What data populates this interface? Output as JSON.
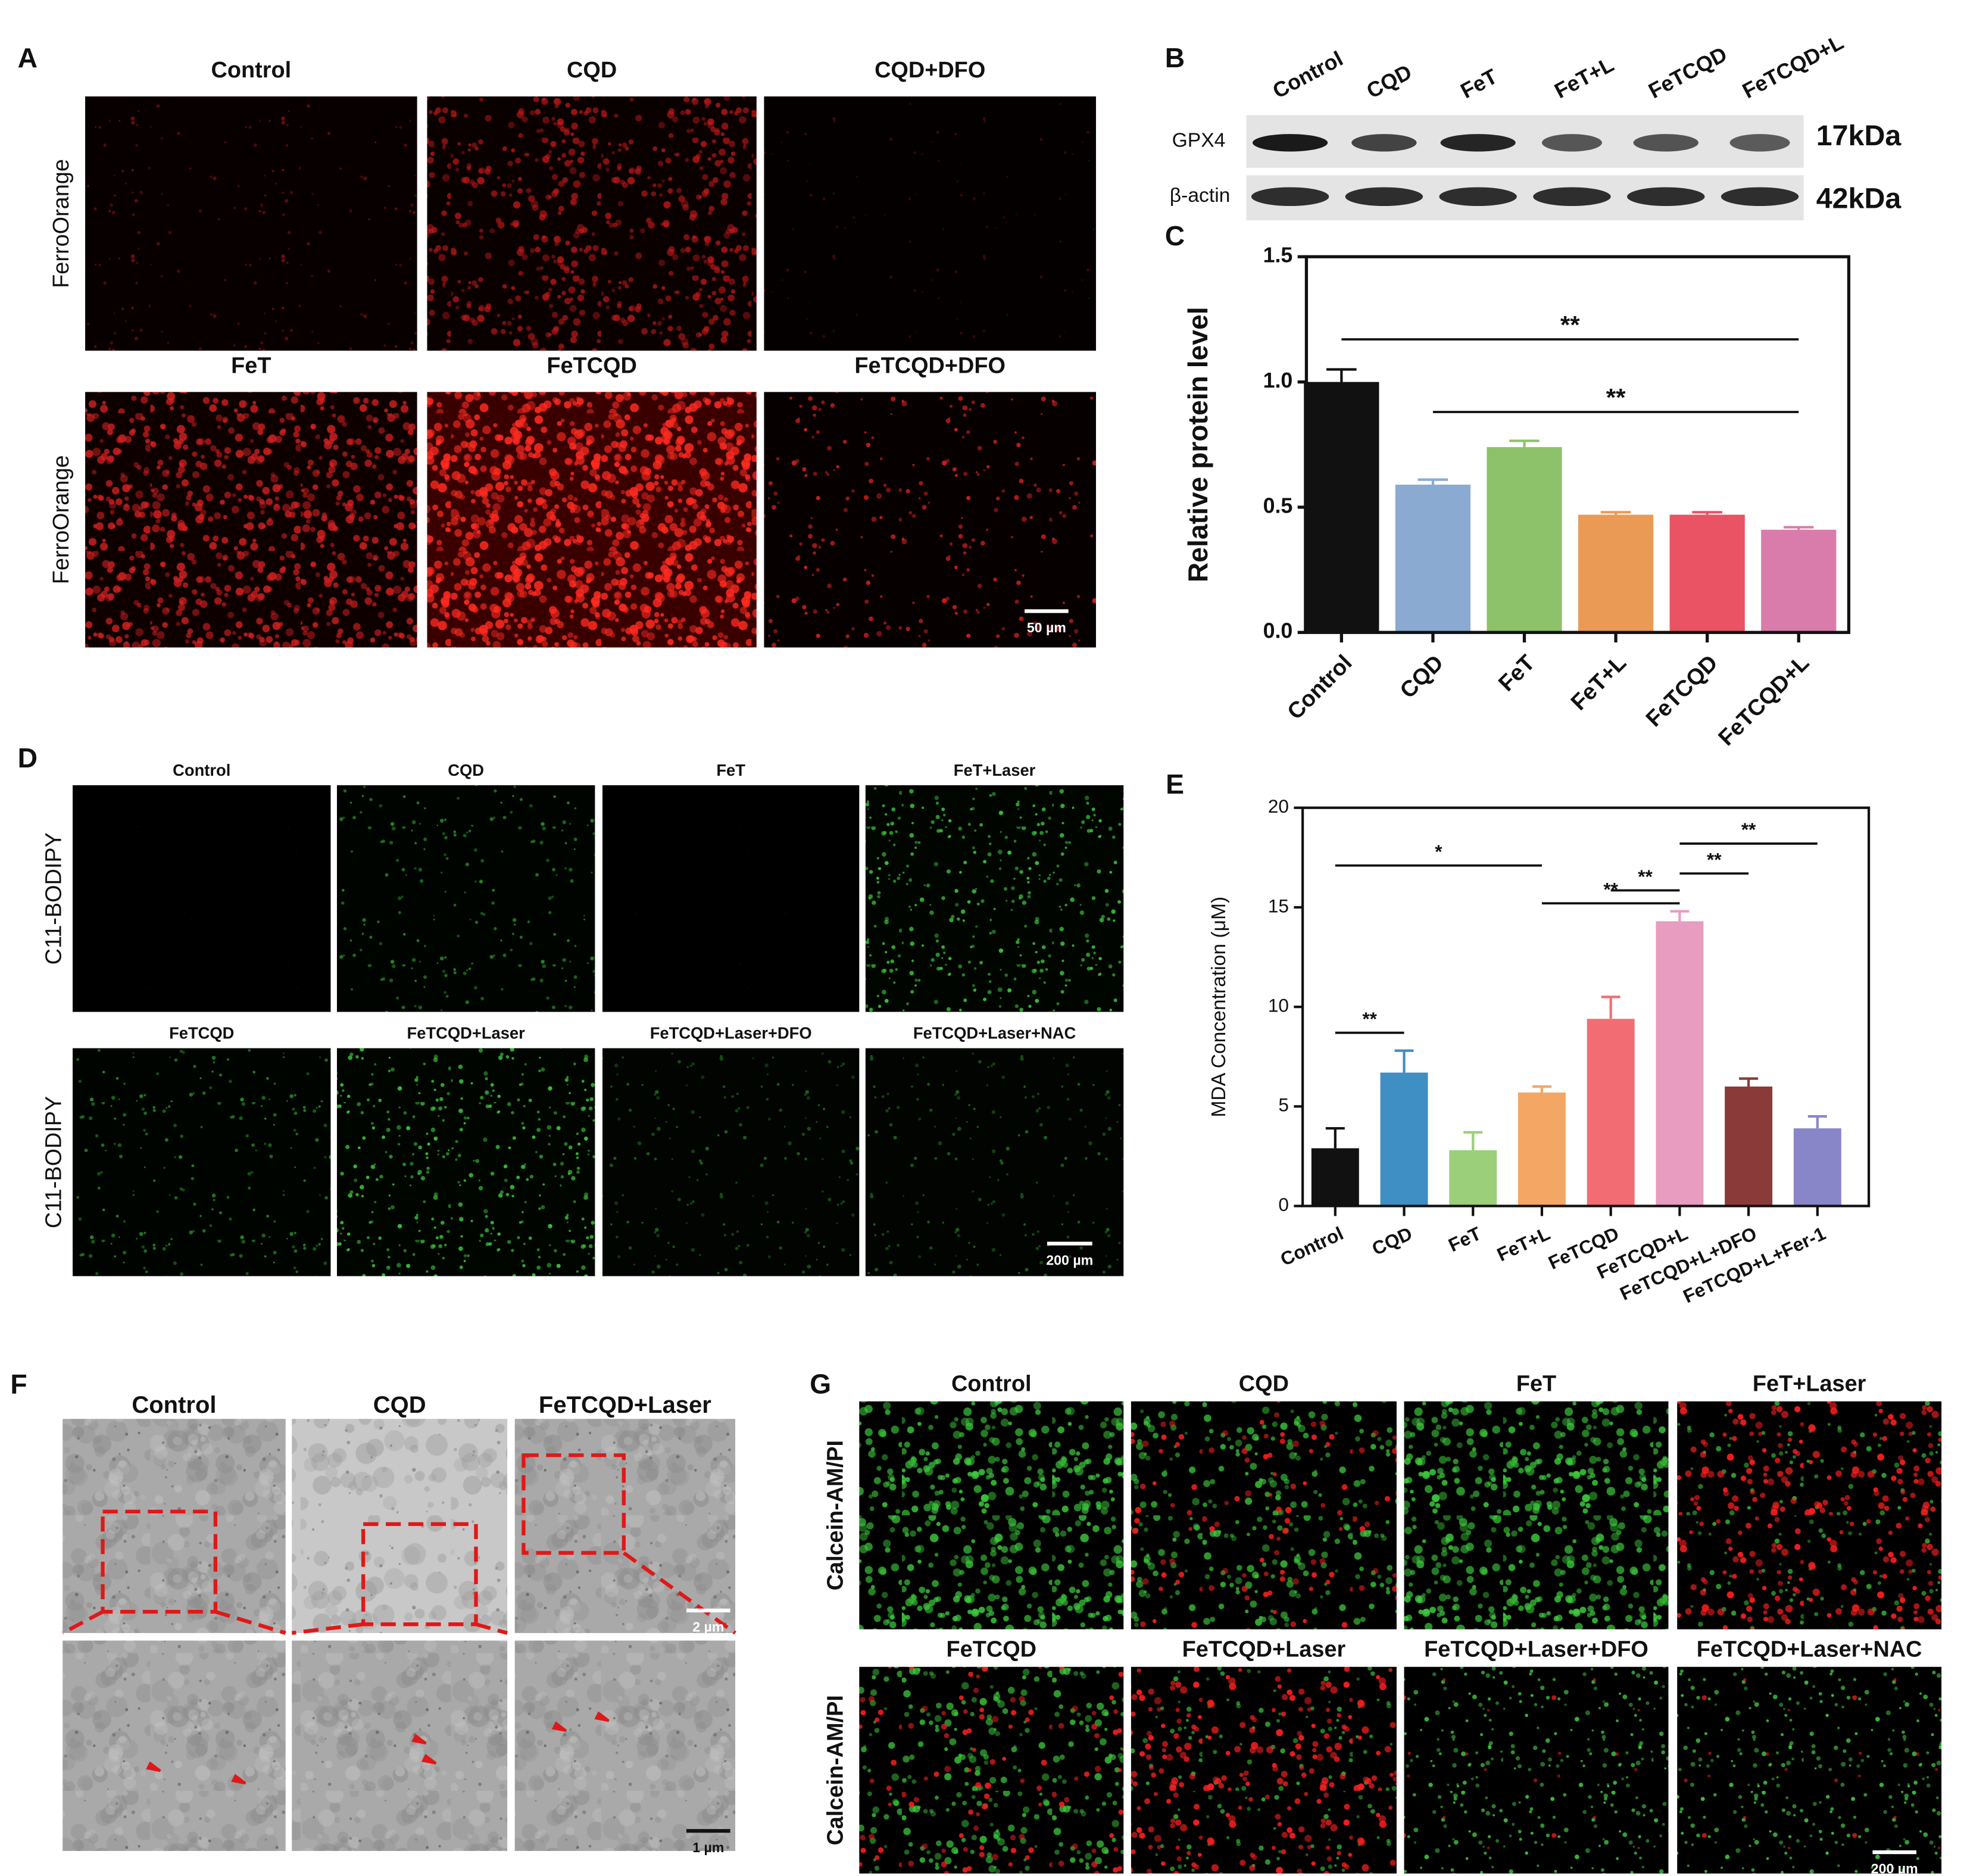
{
  "panel_labels": [
    "A",
    "B",
    "C",
    "D",
    "E",
    "F",
    "G"
  ],
  "panel_a": {
    "titles": [
      "Control",
      "CQD",
      "CQD+DFO",
      "FeT",
      "FeTCQD",
      "FeTCQD+DFO"
    ],
    "row_labels": [
      "FerroOrange",
      "FerroOrange"
    ],
    "scale_bar": "50 µm"
  },
  "panel_b": {
    "lanes": [
      "Control",
      "CQD",
      "FeT",
      "FeT+L",
      "FeTCQD",
      "FeTCQD+L"
    ],
    "proteins": [
      "GPX4",
      "β-actin"
    ],
    "weights": [
      "17kDa",
      "42kDa"
    ]
  },
  "panel_d": {
    "titles": [
      "Control",
      "CQD",
      "FeT",
      "FeT+Laser",
      "FeTCQD",
      "FeTCQD+Laser",
      "FeTCQD+Laser+DFO",
      "FeTCQD+Laser+NAC"
    ],
    "row_labels": [
      "C11-BODIPY",
      "C11-BODIPY"
    ],
    "scale_bar": "200 µm"
  },
  "panel_f": {
    "titles": [
      "Control",
      "CQD",
      "FeTCQD+Laser"
    ],
    "scale_bars": [
      "2 µm",
      "1 µm"
    ]
  },
  "panel_g": {
    "titles": [
      "Control",
      "CQD",
      "FeT",
      "FeT+Laser",
      "FeTCQD",
      "FeTCQD+Laser",
      "FeTCQD+Laser+DFO",
      "FeTCQD+Laser+NAC"
    ],
    "row_labels": [
      "Calcein-AM/PI",
      "Calcein-AM/PI"
    ],
    "scale_bar": "200 µm"
  },
  "chart_data": [
    {
      "type": "bar",
      "ylabel": "Relative protein level",
      "categories": [
        "Control",
        "CQD",
        "FeT",
        "FeT+L",
        "FeTCQD",
        "FeTCQD+L"
      ],
      "values": [
        1.0,
        0.59,
        0.74,
        0.47,
        0.47,
        0.41
      ],
      "errors": [
        0.05,
        0.02,
        0.025,
        0.01,
        0.01,
        0.01
      ],
      "colors": [
        "#111111",
        "#8aaad2",
        "#8dc26b",
        "#eb9a55",
        "#ea5363",
        "#d97cab"
      ],
      "ylim": [
        0,
        1.5
      ],
      "yticks": [
        {
          "value": 0,
          "label": "0.0"
        },
        0.5,
        {
          "value": 1,
          "label": "1.0"
        },
        1.5
      ],
      "annotations": [
        {
          "text": "**",
          "between": [
            "Control",
            "FeTCQD+L"
          ],
          "y": 1.17
        },
        {
          "text": "**",
          "between": [
            "CQD",
            "FeTCQD+L"
          ],
          "y": 0.88
        }
      ]
    },
    {
      "type": "bar",
      "ylabel": "MDA Concentration (μM)",
      "categories": [
        "Control",
        "CQD",
        "FeT",
        "FeT+L",
        "FeTCQD",
        "FeTCQD+L",
        "FeTCQD+L+DFO",
        "FeTCQD+L+Fer-1"
      ],
      "values": [
        2.9,
        6.7,
        2.8,
        5.7,
        9.4,
        14.3,
        6.0,
        3.9
      ],
      "errors": [
        1.0,
        1.1,
        0.9,
        0.3,
        1.1,
        0.5,
        0.4,
        0.6
      ],
      "colors": [
        "#111111",
        "#3f8ec4",
        "#9bcf7a",
        "#f4a765",
        "#f26d73",
        "#e79cc0",
        "#8b3a3a",
        "#8886c9"
      ],
      "ylim": [
        0,
        20
      ],
      "yticks": [
        0,
        5,
        10,
        15,
        20
      ],
      "annotations": [
        {
          "text": "*",
          "between": [
            "Control",
            "FeT+L"
          ],
          "y": 17.1
        },
        {
          "text": "**",
          "between": [
            "FeT+L",
            "FeTCQD+L"
          ],
          "y": 15.2
        },
        {
          "text": "**",
          "between": [
            "FeTCQD",
            "FeTCQD+L"
          ],
          "y": 15.85
        },
        {
          "text": "**",
          "between": [
            "FeTCQD+L",
            "FeTCQD+L+DFO"
          ],
          "y": 16.7
        },
        {
          "text": "**",
          "between": [
            "FeTCQD+L",
            "FeTCQD+L+Fer-1"
          ],
          "y": 18.2
        },
        {
          "text": "**",
          "between": [
            "Control",
            "CQD"
          ],
          "y": 8.7
        }
      ]
    }
  ]
}
